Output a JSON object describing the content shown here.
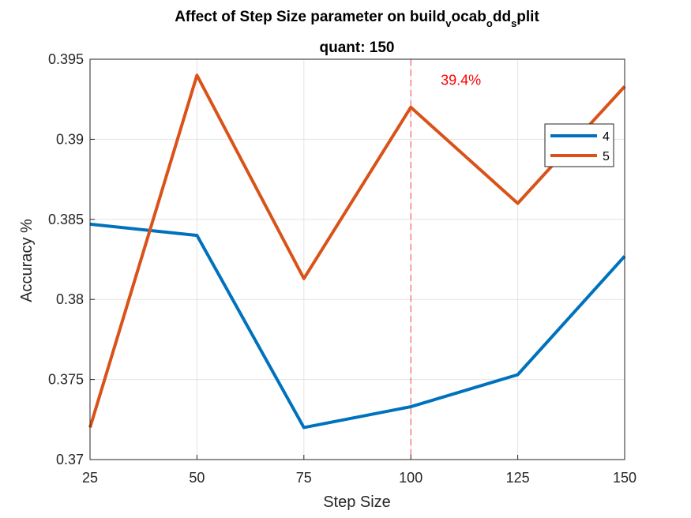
{
  "chart_data": {
    "type": "line",
    "title_main": "Affect of Step Size parameter on build",
    "title_sub1": "v",
    "title_mid1": "ocab",
    "title_sub2": "o",
    "title_mid2": "dd",
    "title_sub3": "s",
    "title_end": "plit",
    "subtitle": "quant: 150",
    "xlabel": "Step Size",
    "ylabel": "Accuracy %",
    "x": [
      25,
      50,
      75,
      100,
      125,
      150
    ],
    "xlim": [
      25,
      150
    ],
    "ylim": [
      0.37,
      0.395
    ],
    "xticks": [
      "25",
      "50",
      "75",
      "100",
      "125",
      "150"
    ],
    "yticks": [
      "0.37",
      "0.375",
      "0.38",
      "0.385",
      "0.39",
      "0.395"
    ],
    "ytick_values": [
      0.37,
      0.375,
      0.38,
      0.385,
      0.39,
      0.395
    ],
    "grid": true,
    "legend_position": "right",
    "series": [
      {
        "name": "4",
        "color": "#0072BD",
        "values": [
          0.3847,
          0.384,
          0.372,
          0.3733,
          0.3753,
          0.3827
        ]
      },
      {
        "name": "5",
        "color": "#D95319",
        "values": [
          0.372,
          0.394,
          0.3813,
          0.392,
          0.386,
          0.3933
        ]
      }
    ],
    "reference_line": {
      "x": 100,
      "color": "#FF0000",
      "style": "dashed"
    },
    "annotation": {
      "text": "39.4%",
      "x": 107,
      "y": 0.3937,
      "color": "#FF0000"
    }
  }
}
